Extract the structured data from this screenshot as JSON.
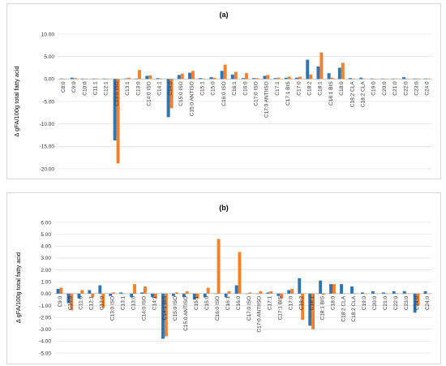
{
  "chart_data": [
    {
      "type": "bar",
      "title": "(a)",
      "ylabel": "Δ  gFA/100g total fatty acid",
      "ylim": [
        -20,
        10
      ],
      "yticks": [
        "10.00",
        "5.00",
        "0.00",
        "-5.00",
        "-10.00",
        "-15.00",
        "-20.00"
      ],
      "ytick_values": [
        10,
        5,
        0,
        -5,
        -10,
        -15,
        -20
      ],
      "categories": [
        "C8:0",
        "C9:0",
        "C10:0",
        "C11:1",
        "C12:1",
        "C13:0 ISO",
        "C13:1",
        "C13:0",
        "C14:0 ISO",
        "C14:1",
        "C14:0",
        "C15:0 ISO",
        "C15:0 ANTISO",
        "C15:1",
        "C15:0",
        "C16:0 ISO",
        "C16:1",
        "C16:0",
        "C17:0 ISO",
        "C17:0 ANTIISO",
        "C17:1",
        "C17:1 BIS",
        "C17:0",
        "C18:2",
        "C18:1",
        "C18:1 BIS",
        "C18:0",
        "C18:2 CLA",
        "C18:2 CLA",
        "C19:0",
        "C20:0",
        "C21:0",
        "C22:0",
        "C23:0",
        "C24:0"
      ],
      "series": [
        {
          "color": "#2e75b6",
          "values": [
            0.1,
            0.3,
            0.1,
            0.1,
            0.1,
            -13.7,
            0.1,
            0.1,
            0.7,
            0.2,
            -8.5,
            0.9,
            1.4,
            0.2,
            0.4,
            1.8,
            1.0,
            0.2,
            0.2,
            0.7,
            0.2,
            0.3,
            0.3,
            4.3,
            2.8,
            1.3,
            2.5,
            0.2,
            0.3,
            0.1,
            0.1,
            0.1,
            0.4,
            0.1,
            0.1
          ]
        },
        {
          "color": "#f4812e",
          "values": [
            0.0,
            0.2,
            0.0,
            0.1,
            0.0,
            -18.8,
            0.3,
            2.0,
            0.8,
            0.1,
            -6.5,
            1.2,
            1.8,
            0.1,
            0.3,
            3.2,
            1.6,
            1.3,
            0.2,
            0.9,
            0.3,
            0.5,
            0.5,
            1.0,
            5.9,
            0.3,
            3.6,
            0.1,
            0.1,
            0.0,
            0.0,
            0.1,
            0.1,
            0.1,
            0.1
          ]
        }
      ]
    },
    {
      "type": "bar",
      "title": "(b)",
      "ylabel": "Δ  gFA/100g total fatty acid",
      "ylim": [
        -5,
        6
      ],
      "yticks": [
        "6.00",
        "5.00",
        "4.00",
        "3.00",
        "2.00",
        "1.00",
        "0.00",
        "-1.00",
        "-2.00",
        "-3.00",
        "-4.00",
        "-5.00"
      ],
      "ytick_values": [
        6,
        5,
        4,
        3,
        2,
        1,
        0,
        -1,
        -2,
        -3,
        -4,
        -5
      ],
      "categories": [
        "C9:0",
        "C10:0",
        "C11:0",
        "C12:1",
        "C12:0",
        "C13:0 ISO",
        "C13:1",
        "C13:0",
        "C14:0 ISO",
        "C14:1",
        "C14:1 BIS",
        "C15:0 ISO",
        "C15:0 ANTISO",
        "C15:1",
        "C15:0",
        "C16:0 ISO",
        "C16:1",
        "C16:0",
        "C17:0 ISO",
        "C17:0 ANTIISO",
        "C17:1",
        "C17:1 BIS",
        "C17:0",
        "C18:2",
        "C18:1",
        "C18:1 BIS",
        "C18:0",
        "C18:2 CLA",
        "C18:2 CLA",
        "C19:0",
        "C20:0",
        "C21:0",
        "C22:0",
        "C23:0",
        "C24:0",
        "C24:0"
      ],
      "series": [
        {
          "color": "#2e75b6",
          "values": [
            0.4,
            -0.8,
            -0.4,
            0.3,
            0.7,
            -0.2,
            0.1,
            -0.3,
            0.1,
            -0.3,
            -3.8,
            -0.2,
            -0.3,
            -0.5,
            -0.3,
            0.0,
            -0.3,
            0.7,
            0.0,
            0.0,
            0.1,
            -0.2,
            0.3,
            1.3,
            -2.7,
            1.1,
            0.8,
            0.8,
            0.6,
            0.1,
            0.2,
            0.1,
            0.2,
            0.2,
            -1.6,
            0.2
          ]
        },
        {
          "color": "#f4812e",
          "values": [
            0.5,
            -1.4,
            0.3,
            -0.3,
            -1.2,
            0.1,
            0.0,
            0.8,
            0.6,
            -0.4,
            -3.6,
            0.1,
            0.2,
            -0.4,
            0.5,
            4.6,
            0.2,
            3.5,
            0.1,
            0.2,
            0.2,
            -0.4,
            0.4,
            -2.2,
            -3.0,
            -0.1,
            0.8,
            0.0,
            0.0,
            0.0,
            0.0,
            0.0,
            0.0,
            0.0,
            -1.0,
            0.0
          ]
        }
      ]
    }
  ]
}
